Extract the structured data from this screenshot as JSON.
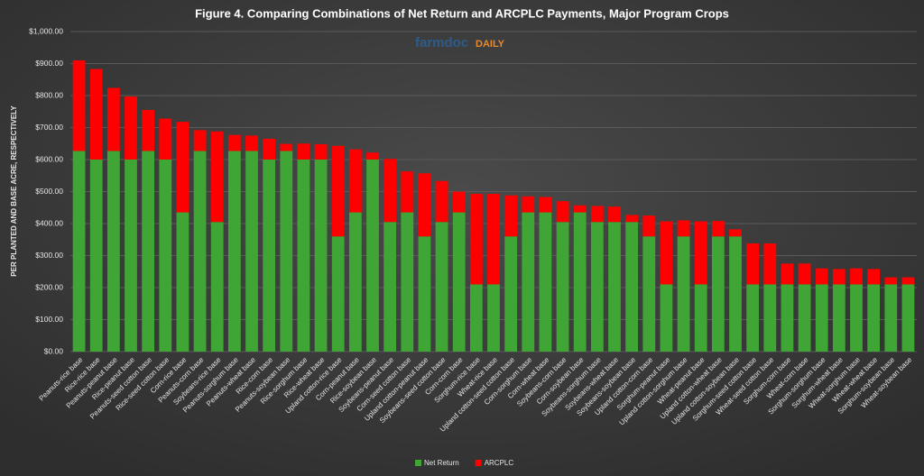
{
  "chart_data": {
    "type": "stacked_bar",
    "title": "Figure 4. Comparing Combinations of Net Return and ARCPLC Payments, Major Program Crops",
    "logo": {
      "main": "farmdoc",
      "accent": "DAILY"
    },
    "y_label": "PER PLANTED AND BASE ACRE, RESPECTIVELY",
    "categories": [
      "Peanuts-rice base",
      "Rice-rice base",
      "Peanuts-peanut base",
      "Rice-peanut base",
      "Peanuts-seed cotton base",
      "Rice-seed cotton base",
      "Corn-rice base",
      "Peanuts-corn base",
      "Soybeans-rice base",
      "Peanuts-sorghum base",
      "Peanuts-wheat base",
      "Rice-corn base",
      "Peanuts-soybean base",
      "Rice-sorghum base",
      "Rice-wheat base",
      "Upland cotton-rice base",
      "Corn-peanut base",
      "Rice-soybean base",
      "Soybeans-peanut base",
      "Corn-seed cotton base",
      "Upland cotton-peanut base",
      "Soybeans-seed cotton base",
      "Corn-corn base",
      "Sorghum-rice base",
      "Wheat-rice base",
      "Upland cotton-seed cotton base",
      "Corn-sorghum base",
      "Corn-wheat base",
      "Soybeans-corn base",
      "Corn-soybean base",
      "Soybeans-sorghum base",
      "Soybeans-wheat base",
      "Soybeans-soybean base",
      "Upland cotton-corn base",
      "Sorghum-peanut base",
      "Upland cotton-sorghum base",
      "Wheat-peanut base",
      "Upland cotton-wheat base",
      "Upland cotton-soybean base",
      "Sorghum-seed cotton base",
      "Wheat-seed cotton base",
      "Sorghum-corn base",
      "Wheat-corn base",
      "Sorghum-sorghum base",
      "Sorghum-wheat base",
      "Wheat-sorghum base",
      "Wheat-wheat base",
      "Sorghum-soybean base",
      "Wheat-soybean base"
    ],
    "series": [
      {
        "name": "Net Return",
        "color": "#3fa535",
        "values": [
          627,
          600,
          627,
          600,
          627,
          600,
          435,
          627,
          405,
          627,
          627,
          600,
          627,
          600,
          600,
          360,
          435,
          600,
          405,
          435,
          360,
          405,
          435,
          210,
          210,
          360,
          435,
          435,
          405,
          435,
          405,
          405,
          405,
          360,
          210,
          360,
          210,
          360,
          360,
          210,
          210,
          210,
          210,
          210,
          210,
          210,
          210,
          210,
          210
        ]
      },
      {
        "name": "ARCPLC",
        "color": "#ff0000",
        "values": [
          283,
          283,
          197,
          197,
          128,
          128,
          283,
          65,
          283,
          50,
          48,
          65,
          22,
          50,
          48,
          283,
          197,
          22,
          197,
          128,
          197,
          128,
          65,
          283,
          283,
          128,
          50,
          48,
          65,
          22,
          50,
          48,
          22,
          65,
          197,
          50,
          197,
          48,
          22,
          128,
          128,
          65,
          65,
          50,
          48,
          50,
          48,
          22,
          22
        ]
      }
    ],
    "ylim": [
      0,
      1000
    ],
    "yticks": [
      {
        "value": 0,
        "label": "$0.00"
      },
      {
        "value": 100,
        "label": "$100.00"
      },
      {
        "value": 200,
        "label": "$200.00"
      },
      {
        "value": 300,
        "label": "$300.00"
      },
      {
        "value": 400,
        "label": "$400.00"
      },
      {
        "value": 500,
        "label": "$500.00"
      },
      {
        "value": 600,
        "label": "$600.00"
      },
      {
        "value": 700,
        "label": "$700.00"
      },
      {
        "value": 800,
        "label": "$800.00"
      },
      {
        "value": 900,
        "label": "$900.00"
      },
      {
        "value": 1000,
        "label": "$1,000.00"
      }
    ],
    "grid": true,
    "legend": "bottom"
  }
}
